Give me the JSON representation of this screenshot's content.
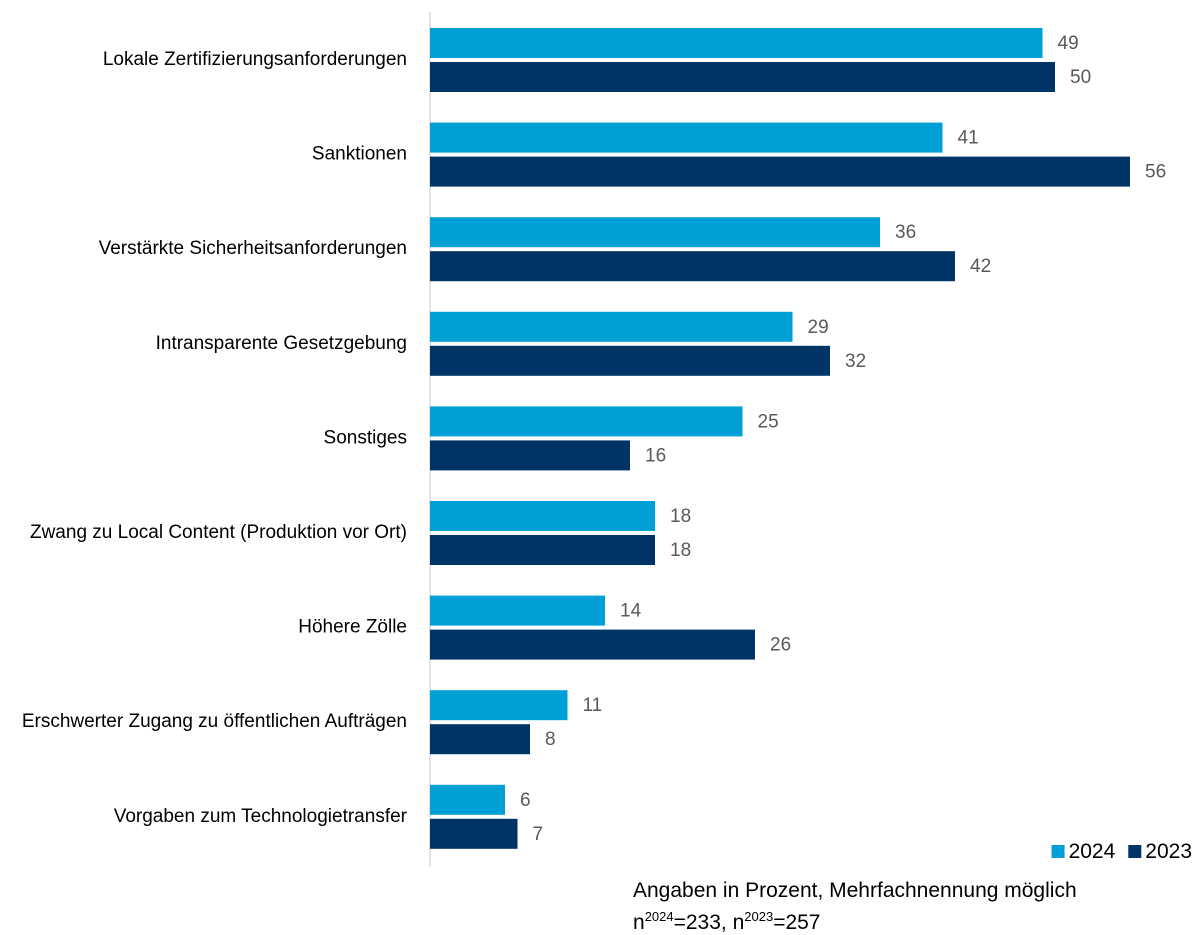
{
  "chart_data": {
    "type": "bar",
    "orientation": "horizontal",
    "categories": [
      "Lokale Zertifizierungsanforderungen",
      "Sanktionen",
      "Verstärkte Sicherheitsanforderungen",
      "Intransparente Gesetzgebung",
      "Sonstiges",
      "Zwang zu Local Content (Produktion vor Ort)",
      "Höhere Zölle",
      "Erschwerter Zugang zu öffentlichen Aufträgen",
      "Vorgaben zum Technologietransfer"
    ],
    "series": [
      {
        "name": "2024",
        "color": "#00a0d7",
        "values": [
          49,
          41,
          36,
          29,
          25,
          18,
          14,
          11,
          6
        ]
      },
      {
        "name": "2023",
        "color": "#003366",
        "values": [
          50,
          56,
          42,
          32,
          16,
          18,
          26,
          8,
          7
        ]
      }
    ],
    "xlim": [
      0,
      60
    ],
    "legend": "bottom-right",
    "note": "Angaben in Prozent, Mehrfachnennung möglich",
    "sample_note": [
      "n",
      "2024",
      "=233, n",
      "2023",
      "=257"
    ]
  }
}
